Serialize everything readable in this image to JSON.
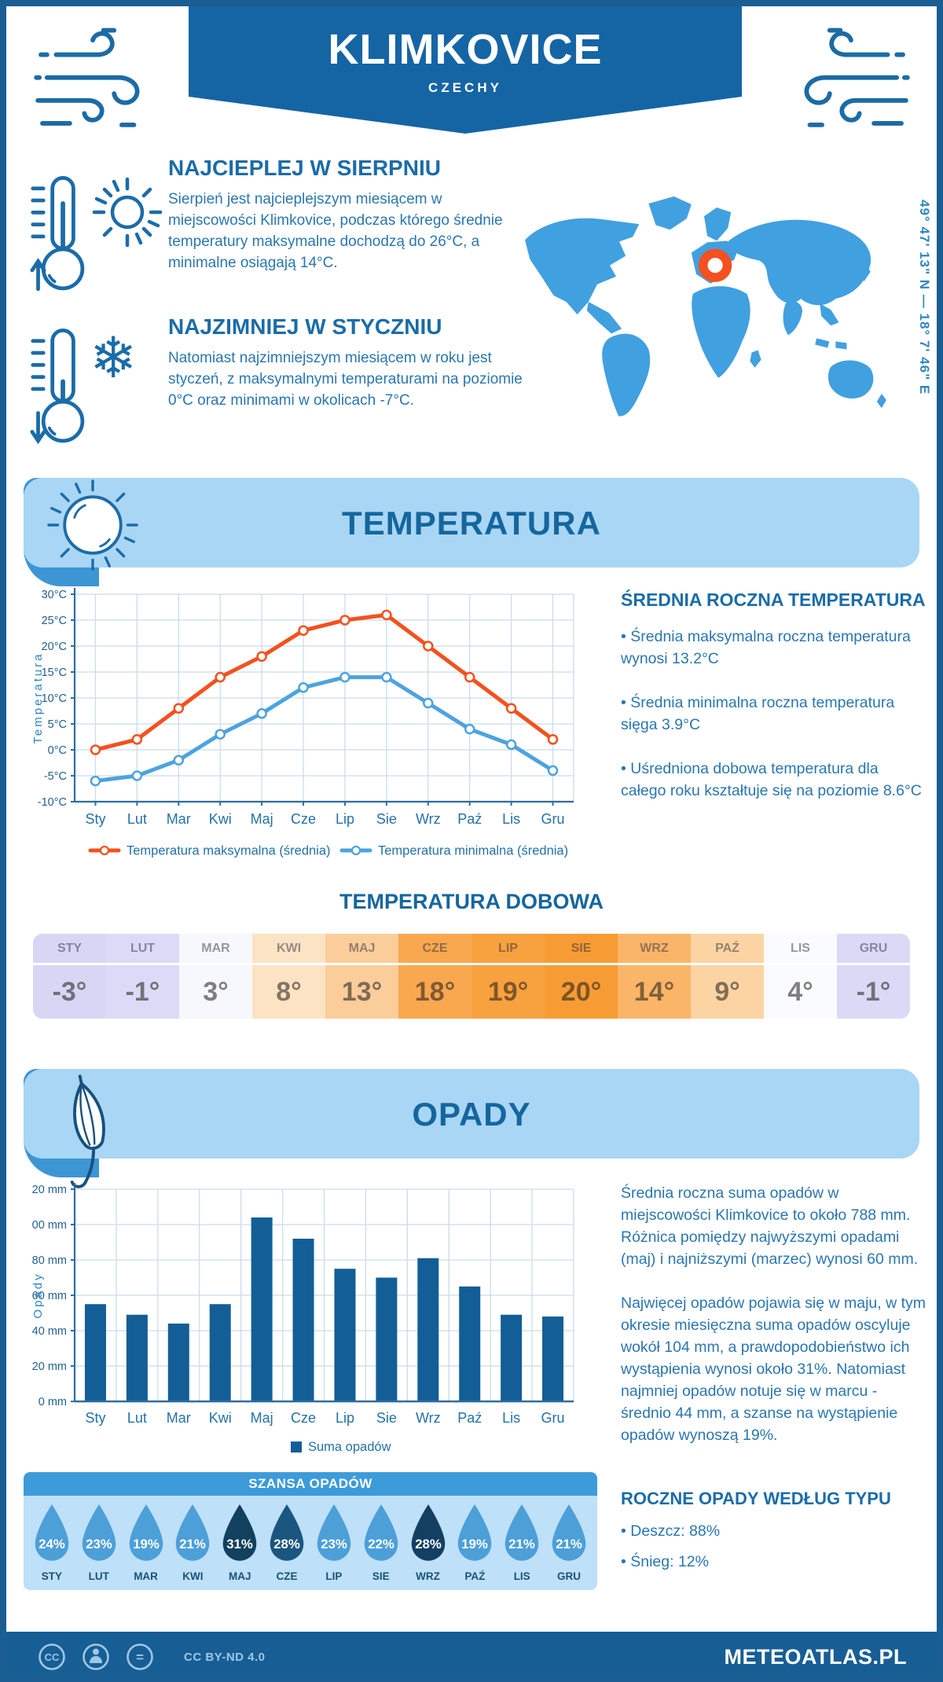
{
  "header": {
    "title": "KLIMKOVICE",
    "subtitle": "CZECHY",
    "coordinates": "49° 47' 13\" N — 18° 7' 46\" E"
  },
  "highlights": {
    "warm": {
      "heading": "NAJCIEPLEJ W SIERPNIU",
      "text": "Sierpień jest najcieplejszym miesiącem w miejscowości Klimkovice, podczas którego średnie temperatury maksymalne dochodzą do 26°C, a minimalne osiągają 14°C."
    },
    "cold": {
      "heading": "NAJZIMNIEJ W STYCZNIU",
      "text": "Natomiast najzimniejszym miesiącem w roku jest styczeń, z maksymalnymi temperaturami na poziomie 0°C oraz minimami w okolicach -7°C."
    }
  },
  "temperature_section": {
    "banner_title": "TEMPERATURA",
    "stats_heading": "ŚREDNIA ROCZNA TEMPERATURA",
    "stats_bullets": [
      "Średnia maksymalna roczna temperatura wynosi 13.2°C",
      "Średnia minimalna roczna temperatura sięga 3.9°C",
      "Uśredniona dobowa temperatura dla całego roku kształtuje się na poziomie 8.6°C"
    ]
  },
  "daily_temperature": {
    "title": "TEMPERATURA DOBOWA",
    "months": [
      "STY",
      "LUT",
      "MAR",
      "KWI",
      "MAJ",
      "CZE",
      "LIP",
      "SIE",
      "WRZ",
      "PAŹ",
      "LIS",
      "GRU"
    ],
    "values": [
      "-3°",
      "-1°",
      "3°",
      "8°",
      "13°",
      "18°",
      "19°",
      "20°",
      "14°",
      "9°",
      "4°",
      "-1°"
    ],
    "cell_colors": [
      "#D7D7F5",
      "#DBDBF7",
      "#F7F8FD",
      "#FCE3C4",
      "#FBCD9B",
      "#F9A850",
      "#F8A13F",
      "#F79C35",
      "#FAB568",
      "#FCD4A4",
      "#FAFBFE",
      "#DADAF6"
    ]
  },
  "precipitation_section": {
    "banner_title": "OPADY",
    "paragraphs": [
      "Średnia roczna suma opadów w miejscowości Klimkovice to około 788 mm. Różnica pomiędzy najwyższymi opadami (maj) i najniższymi (marzec) wynosi 60 mm.",
      "Najwięcej opadów pojawia się w maju, w tym okresie miesięczna suma opadów oscyluje wokół 104 mm, a prawdopodobieństwo ich wystąpienia wynosi około 31%. Natomiast najmniej opadów notuje się w marcu - średnio 44 mm, a szanse na wystąpienie opadów wynoszą 19%."
    ],
    "type_heading": "ROCZNE OPADY WEDŁUG TYPU",
    "type_bullets": [
      "Deszcz: 88%",
      "Śnieg: 12%"
    ]
  },
  "rain_chance": {
    "title": "SZANSA OPADÓW",
    "months": [
      "STY",
      "LUT",
      "MAR",
      "KWI",
      "MAJ",
      "CZE",
      "LIP",
      "SIE",
      "WRZ",
      "PAŹ",
      "LIS",
      "GRU"
    ],
    "values": [
      "24%",
      "23%",
      "19%",
      "21%",
      "31%",
      "28%",
      "23%",
      "22%",
      "28%",
      "19%",
      "21%",
      "21%"
    ],
    "drop_colors": [
      "#4D9FD8",
      "#4D9FD8",
      "#4D9FD8",
      "#4D9FD8",
      "#12405F",
      "#1A5680",
      "#4D9FD8",
      "#4D9FD8",
      "#133F63",
      "#4D9FD8",
      "#4D9FD8",
      "#4D9FD8"
    ]
  },
  "footer": {
    "license": "CC BY-ND 4.0",
    "site": "METEOATLAS.PL"
  },
  "colors": {
    "dark_blue": "#15669E",
    "border_blue": "#1A5E93",
    "banner_light_blue": "#A9D6F5",
    "cap_blue": "#3D96D4",
    "map_blue": "#41A0E0",
    "marker_orange": "#F4511E",
    "max_line": "#F4511E",
    "min_line": "#4DA3DE",
    "bar_blue": "#135E97"
  },
  "chart_data": [
    {
      "type": "line",
      "title": "",
      "categories": [
        "Sty",
        "Lut",
        "Mar",
        "Kwi",
        "Maj",
        "Cze",
        "Lip",
        "Sie",
        "Wrz",
        "Paź",
        "Lis",
        "Gru"
      ],
      "series": [
        {
          "name": "Temperatura maksymalna (średnia)",
          "color": "#F4511E",
          "values": [
            0,
            2,
            8,
            14,
            18,
            23,
            25,
            26,
            20,
            14,
            8,
            2
          ]
        },
        {
          "name": "Temperatura minimalna (średnia)",
          "color": "#4DA3DE",
          "values": [
            -6,
            -5,
            -2,
            3,
            7,
            12,
            14,
            14,
            9,
            4,
            1,
            -4
          ]
        }
      ],
      "xlabel": "",
      "ylabel": "Temperatura",
      "ylim": [
        -10,
        30
      ],
      "ytick_step": 5,
      "yunit": "°C",
      "grid": true,
      "legend_position": "bottom"
    },
    {
      "type": "bar",
      "title": "",
      "categories": [
        "Sty",
        "Lut",
        "Mar",
        "Kwi",
        "Maj",
        "Cze",
        "Lip",
        "Sie",
        "Wrz",
        "Paź",
        "Lis",
        "Gru"
      ],
      "series": [
        {
          "name": "Suma opadów",
          "color": "#135E97",
          "values": [
            55,
            49,
            44,
            55,
            104,
            92,
            75,
            70,
            81,
            65,
            49,
            48
          ]
        }
      ],
      "xlabel": "",
      "ylabel": "Opady",
      "ylim": [
        0,
        120
      ],
      "ytick_step": 20,
      "yunit": " mm",
      "grid": true,
      "legend_position": "bottom"
    }
  ]
}
